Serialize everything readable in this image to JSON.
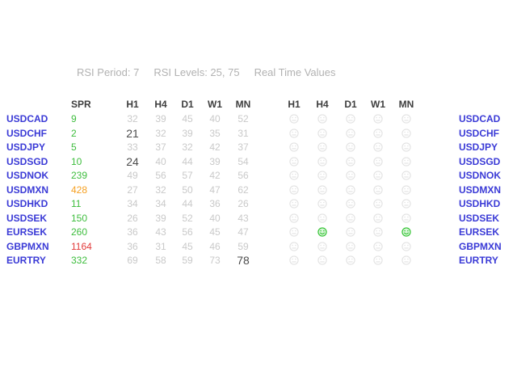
{
  "colors": {
    "pair_blue": "#3A3AD6",
    "green": "#3DBD3D",
    "orange": "#F6A021",
    "red": "#E23B3B",
    "rsi_light": "#C9C9C9",
    "rsi_dark": "#4D4D4D",
    "header_text": "#B2B2B2",
    "column_header": "#3E3E3E",
    "smiley_gray": "#E2E2E2",
    "smiley_green": "#2EC12E",
    "smiley_green_fill": "#D8F6D8"
  },
  "header": {
    "period": "RSI Period: 7",
    "levels": "RSI Levels: 25, 75",
    "realtime": "Real Time Values"
  },
  "table": {
    "spr_header": "SPR",
    "timeframes": [
      "H1",
      "H4",
      "D1",
      "W1",
      "MN"
    ],
    "rows": [
      {
        "pair": "USDCAD",
        "spr": "9",
        "spr_color": "green",
        "rsi": [
          "32",
          "39",
          "45",
          "40",
          "52"
        ],
        "rsi_dark": [
          false,
          false,
          false,
          false,
          false
        ],
        "smileys": [
          "neutral",
          "neutral",
          "neutral",
          "neutral",
          "neutral"
        ]
      },
      {
        "pair": "USDCHF",
        "spr": "2",
        "spr_color": "green",
        "rsi": [
          "21",
          "32",
          "39",
          "35",
          "31"
        ],
        "rsi_dark": [
          true,
          false,
          false,
          false,
          false
        ],
        "smileys": [
          "neutral",
          "neutral",
          "neutral",
          "neutral",
          "neutral"
        ]
      },
      {
        "pair": "USDJPY",
        "spr": "5",
        "spr_color": "green",
        "rsi": [
          "33",
          "37",
          "32",
          "42",
          "37"
        ],
        "rsi_dark": [
          false,
          false,
          false,
          false,
          false
        ],
        "smileys": [
          "neutral",
          "neutral",
          "neutral",
          "neutral",
          "neutral"
        ]
      },
      {
        "pair": "USDSGD",
        "spr": "10",
        "spr_color": "green",
        "rsi": [
          "24",
          "40",
          "44",
          "39",
          "54"
        ],
        "rsi_dark": [
          true,
          false,
          false,
          false,
          false
        ],
        "smileys": [
          "neutral",
          "neutral",
          "neutral",
          "neutral",
          "neutral"
        ]
      },
      {
        "pair": "USDNOK",
        "spr": "239",
        "spr_color": "green",
        "rsi": [
          "49",
          "56",
          "57",
          "42",
          "56"
        ],
        "rsi_dark": [
          false,
          false,
          false,
          false,
          false
        ],
        "smileys": [
          "neutral",
          "neutral",
          "neutral",
          "neutral",
          "neutral"
        ]
      },
      {
        "pair": "USDMXN",
        "spr": "428",
        "spr_color": "orange",
        "rsi": [
          "27",
          "32",
          "50",
          "47",
          "62"
        ],
        "rsi_dark": [
          false,
          false,
          false,
          false,
          false
        ],
        "smileys": [
          "neutral",
          "neutral",
          "neutral",
          "neutral",
          "neutral"
        ]
      },
      {
        "pair": "USDHKD",
        "spr": "11",
        "spr_color": "green",
        "rsi": [
          "34",
          "34",
          "44",
          "36",
          "26"
        ],
        "rsi_dark": [
          false,
          false,
          false,
          false,
          false
        ],
        "smileys": [
          "neutral",
          "neutral",
          "neutral",
          "neutral",
          "neutral"
        ]
      },
      {
        "pair": "USDSEK",
        "spr": "150",
        "spr_color": "green",
        "rsi": [
          "26",
          "39",
          "52",
          "40",
          "43"
        ],
        "rsi_dark": [
          false,
          false,
          false,
          false,
          false
        ],
        "smileys": [
          "neutral",
          "neutral",
          "neutral",
          "neutral",
          "neutral"
        ]
      },
      {
        "pair": "EURSEK",
        "spr": "260",
        "spr_color": "green",
        "rsi": [
          "36",
          "43",
          "56",
          "45",
          "47"
        ],
        "rsi_dark": [
          false,
          false,
          false,
          false,
          false
        ],
        "smileys": [
          "neutral",
          "happy",
          "neutral",
          "neutral",
          "happy"
        ]
      },
      {
        "pair": "GBPMXN",
        "spr": "1164",
        "spr_color": "red",
        "rsi": [
          "36",
          "31",
          "45",
          "46",
          "59"
        ],
        "rsi_dark": [
          false,
          false,
          false,
          false,
          false
        ],
        "smileys": [
          "neutral",
          "neutral",
          "neutral",
          "neutral",
          "neutral"
        ]
      },
      {
        "pair": "EURTRY",
        "spr": "332",
        "spr_color": "green",
        "rsi": [
          "69",
          "58",
          "59",
          "73",
          "78"
        ],
        "rsi_dark": [
          false,
          false,
          false,
          false,
          true
        ],
        "smileys": [
          "neutral",
          "neutral",
          "neutral",
          "neutral",
          "neutral"
        ]
      }
    ]
  }
}
